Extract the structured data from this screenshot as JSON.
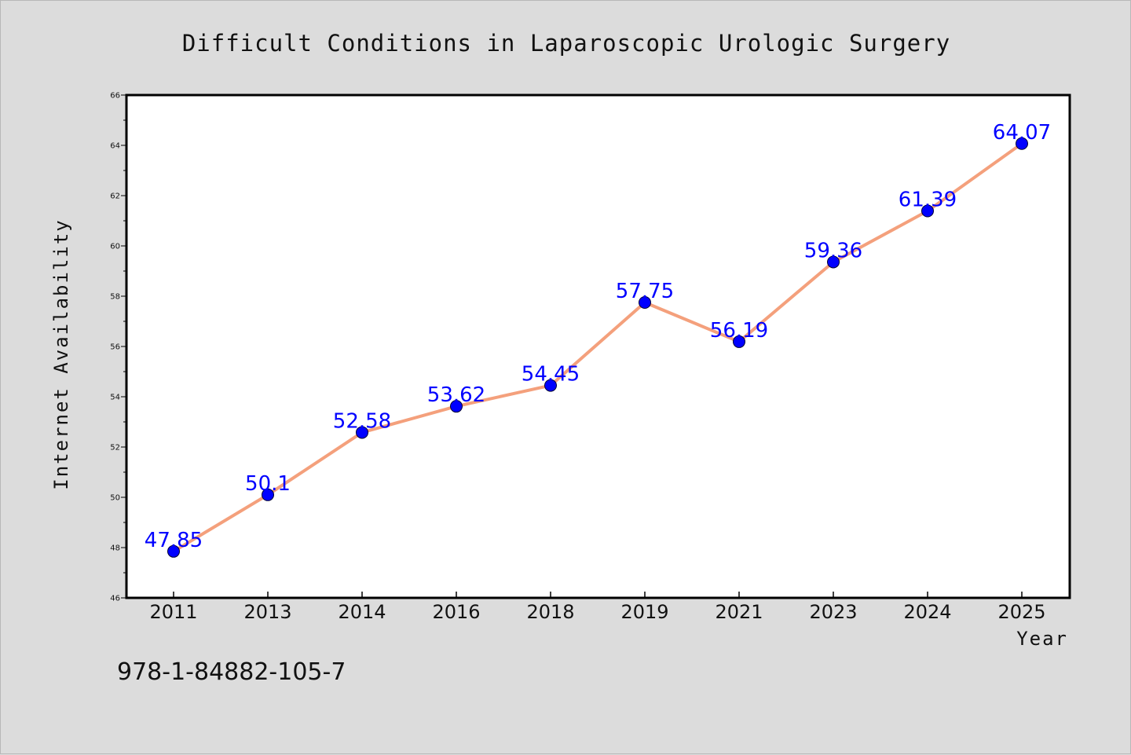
{
  "chart_data": {
    "type": "line",
    "title": "Difficult Conditions in Laparoscopic Urologic Surgery",
    "xlabel": "Year",
    "ylabel": "Internet Availability",
    "categories": [
      "2011",
      "2013",
      "2014",
      "2016",
      "2018",
      "2019",
      "2021",
      "2023",
      "2024",
      "2025"
    ],
    "series": [
      {
        "values": [
          47.85,
          50.1,
          52.58,
          53.62,
          54.45,
          57.75,
          56.19,
          59.36,
          61.39,
          64.07
        ]
      }
    ],
    "data_labels": [
      "47.85",
      "50.1",
      "52.58",
      "53.62",
      "54.45",
      "57.75",
      "56.19",
      "59.36",
      "61.39",
      "64.07"
    ],
    "ylim": [
      46,
      66
    ],
    "yticks": [
      "46",
      "48",
      "50",
      "52",
      "54",
      "56",
      "58",
      "60",
      "62",
      "64",
      "66"
    ],
    "grid": false,
    "colors": {
      "line": "#f4a07c",
      "marker": "#0000ff",
      "data_label": "#0000ff",
      "plot_bg": "#ffffff",
      "figure_bg": "#dcdcdc"
    }
  },
  "footnote": "978-1-84882-105-7"
}
